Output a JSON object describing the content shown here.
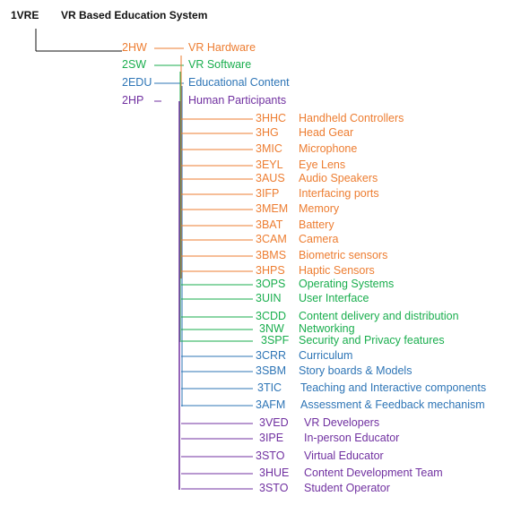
{
  "colors": {
    "root": "#111111",
    "hardware": "#ED7D31",
    "software": "#1AAE4E",
    "education": "#2E75B6",
    "participants": "#7030A0"
  },
  "root": {
    "code": "1VRE",
    "name": "VR Based Education System"
  },
  "level2": [
    {
      "code": "2HW",
      "name": "VR Hardware",
      "group": "hardware"
    },
    {
      "code": "2SW",
      "name": "VR Software",
      "group": "software"
    },
    {
      "code": "2EDU",
      "name": "Educational Content",
      "group": "education"
    },
    {
      "code": "2HP",
      "name": "Human Participants",
      "group": "participants"
    }
  ],
  "level3": [
    {
      "code": "3HHC",
      "name": "Handheld Controllers",
      "group": "hardware"
    },
    {
      "code": "3HG",
      "name": "Head Gear",
      "group": "hardware"
    },
    {
      "code": "3MIC",
      "name": "Microphone",
      "group": "hardware"
    },
    {
      "code": "3EYL",
      "name": "Eye Lens",
      "group": "hardware"
    },
    {
      "code": "3AUS",
      "name": "Audio Speakers",
      "group": "hardware"
    },
    {
      "code": "3IFP",
      "name": "Interfacing ports",
      "group": "hardware"
    },
    {
      "code": "3MEM",
      "name": "Memory",
      "group": "hardware"
    },
    {
      "code": "3BAT",
      "name": "Battery",
      "group": "hardware"
    },
    {
      "code": "3CAM",
      "name": "Camera",
      "group": "hardware"
    },
    {
      "code": "3BMS",
      "name": "Biometric sensors",
      "group": "hardware"
    },
    {
      "code": "3HPS",
      "name": "Haptic Sensors",
      "group": "hardware"
    },
    {
      "code": "3OPS",
      "name": "Operating Systems",
      "group": "software"
    },
    {
      "code": "3UIN",
      "name": "User Interface",
      "group": "software"
    },
    {
      "code": "3CDD",
      "name": "Content delivery and distribution",
      "group": "software"
    },
    {
      "code": "3NW",
      "name": "Networking",
      "group": "software"
    },
    {
      "code": "3SPF",
      "name": "Security and Privacy features",
      "group": "software"
    },
    {
      "code": "3CRR",
      "name": "Curriculum",
      "group": "education"
    },
    {
      "code": "3SBM",
      "name": "Story boards & Models",
      "group": "education"
    },
    {
      "code": "3TIC",
      "name": "Teaching and Interactive components",
      "group": "education"
    },
    {
      "code": "3AFM",
      "name": "Assessment & Feedback mechanism",
      "group": "education"
    },
    {
      "code": "3VED",
      "name": "VR Developers",
      "group": "participants"
    },
    {
      "code": "3IPE",
      "name": "In-person Educator",
      "group": "participants"
    },
    {
      "code": "3STO",
      "name": "Virtual Educator",
      "group": "participants"
    },
    {
      "code": "3HUE",
      "name": "Content Development Team",
      "group": "participants"
    },
    {
      "code": "3STO",
      "name": "Student Operator",
      "group": "participants"
    }
  ]
}
